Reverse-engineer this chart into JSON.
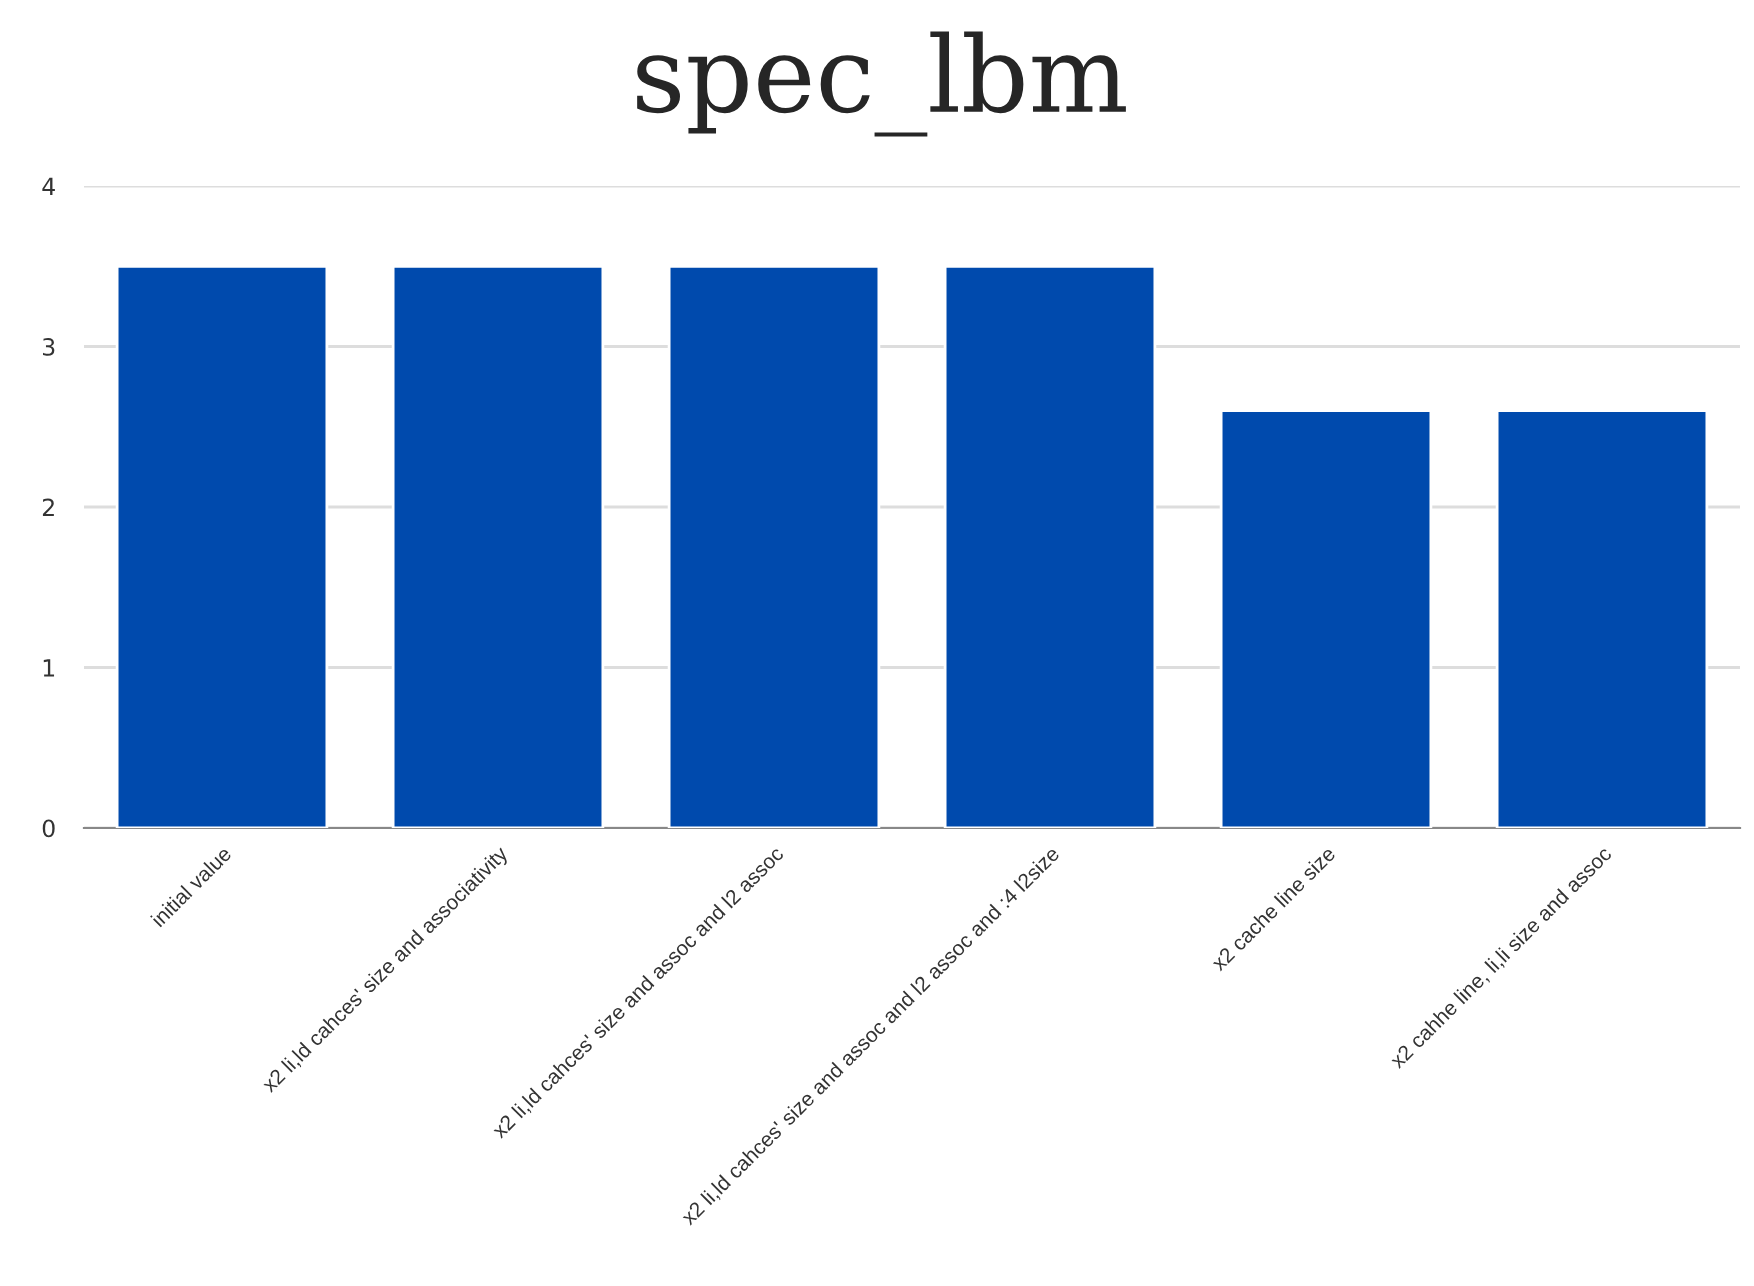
{
  "chart_data": {
    "type": "bar",
    "title": "spec_lbm",
    "categories": [
      "initial value",
      "x2 li,ld cahces' size and associativity",
      "x2 li,ld cahces' size and assoc and l2 assoc",
      "x2 li,ld cahces' size and assoc and l2 assoc and :4 l2size",
      "x2 cache line size",
      "x2 cahhe line, li,li size and assoc"
    ],
    "values": [
      3.5,
      3.5,
      3.5,
      3.5,
      2.6,
      2.6
    ],
    "color": "#004aad",
    "ylim": [
      0,
      4
    ],
    "yticks": [
      0,
      1,
      2,
      3,
      4
    ],
    "grid": "y"
  }
}
